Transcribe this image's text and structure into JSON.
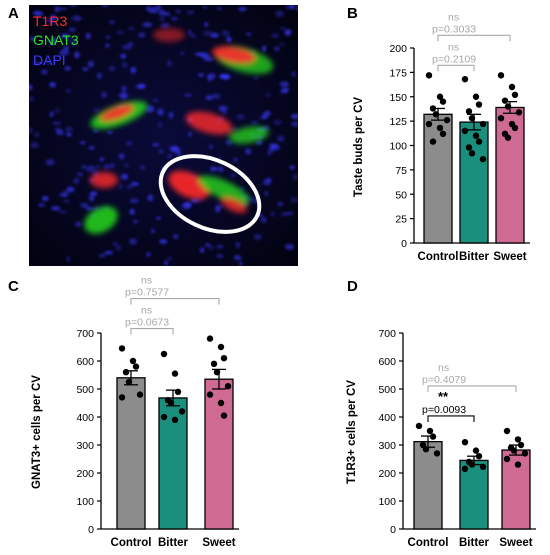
{
  "panels": {
    "A": "A",
    "B": "B",
    "C": "C",
    "D": "D"
  },
  "micrograph": {
    "legend": [
      "T1R3",
      "GNAT3",
      "DAPI"
    ],
    "legend_colors": [
      "#ff2a2a",
      "#27e51d",
      "#3a39ff"
    ],
    "background": "#04041a"
  },
  "chart_data": [
    {
      "id": "B",
      "type": "bar",
      "categories": [
        "Control",
        "Bitter",
        "Sweet"
      ],
      "colors": [
        "#8c8c8c",
        "#1b8f7e",
        "#cf6b92"
      ],
      "means": [
        132,
        124,
        139
      ],
      "sem": [
        6,
        8,
        6
      ],
      "points": [
        [
          172,
          150,
          145,
          138,
          132,
          126,
          122,
          118,
          112,
          104
        ],
        [
          168,
          150,
          142,
          135,
          128,
          122,
          115,
          110,
          104,
          98,
          92,
          86
        ],
        [
          172,
          160,
          152,
          146,
          140,
          134,
          128,
          122,
          118,
          112,
          108
        ]
      ],
      "ylabel": "Taste buds per CV",
      "ylim": [
        0,
        200
      ],
      "yticks": [
        0,
        25,
        50,
        75,
        100,
        125,
        150,
        175,
        200
      ],
      "comparisons": [
        {
          "from": 0,
          "to": 1,
          "sig": "ns",
          "p": "p=0.2109"
        },
        {
          "from": 0,
          "to": 2,
          "sig": "ns",
          "p": "p=0.3033"
        }
      ]
    },
    {
      "id": "C",
      "type": "bar",
      "categories": [
        "Control",
        "Bitter",
        "Sweet"
      ],
      "colors": [
        "#8c8c8c",
        "#1b8f7e",
        "#cf6b92"
      ],
      "means": [
        540,
        468,
        535
      ],
      "sem": [
        25,
        28,
        35
      ],
      "points": [
        [
          645,
          600,
          580,
          560,
          525,
          480,
          470
        ],
        [
          625,
          555,
          490,
          460,
          450,
          420,
          400,
          390
        ],
        [
          680,
          650,
          610,
          590,
          560,
          510,
          480,
          450,
          405
        ]
      ],
      "ylabel": "GNAT3+ cells per CV",
      "ylim": [
        0,
        700
      ],
      "yticks": [
        0,
        100,
        200,
        300,
        400,
        500,
        600,
        700
      ],
      "comparisons": [
        {
          "from": 0,
          "to": 1,
          "sig": "ns",
          "p": "p=0.0673"
        },
        {
          "from": 0,
          "to": 2,
          "sig": "ns",
          "p": "p=0.7577"
        }
      ]
    },
    {
      "id": "D",
      "type": "bar",
      "categories": [
        "Control",
        "Bitter",
        "Sweet"
      ],
      "colors": [
        "#8c8c8c",
        "#1b8f7e",
        "#cf6b92"
      ],
      "means": [
        312,
        245,
        282
      ],
      "sem": [
        20,
        15,
        18
      ],
      "points": [
        [
          368,
          350,
          330,
          300,
          285,
          270
        ],
        [
          310,
          280,
          260,
          240,
          230,
          222,
          215
        ],
        [
          350,
          320,
          300,
          290,
          280,
          270,
          250,
          230
        ]
      ],
      "ylabel": "T1R3+ cells per CV",
      "ylim": [
        0,
        700
      ],
      "yticks": [
        0,
        100,
        200,
        300,
        400,
        500,
        600,
        700
      ],
      "comparisons": [
        {
          "from": 0,
          "to": 1,
          "sig": "**",
          "p": "p=0.0093"
        },
        {
          "from": 0,
          "to": 2,
          "sig": "ns",
          "p": "p=0.4079"
        }
      ]
    }
  ]
}
